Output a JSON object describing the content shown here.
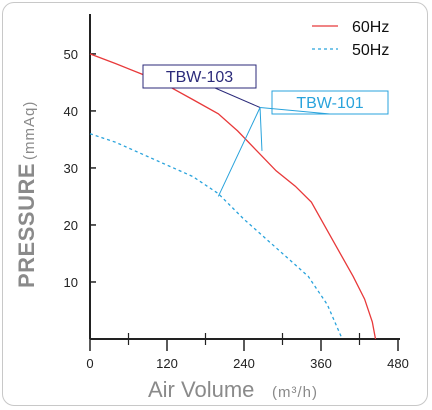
{
  "chart_data": {
    "type": "line",
    "xlabel": "Air Volume",
    "xunit": "(m³/h)",
    "ylabel": "PRESSURE",
    "yunit": "(mmAq)",
    "xlim": [
      0,
      480
    ],
    "ylim": [
      0,
      57
    ],
    "x_ticks": [
      0,
      120,
      240,
      360,
      480
    ],
    "x_minor_ticks": [
      60,
      180,
      300,
      420
    ],
    "y_ticks": [
      10,
      20,
      30,
      40,
      50
    ],
    "grid": false,
    "legend_position": "top-right",
    "series": [
      {
        "name": "60Hz",
        "color": "#e8393a",
        "style": "solid",
        "points": [
          [
            0,
            50
          ],
          [
            40,
            48.3
          ],
          [
            80,
            46.5
          ],
          [
            120,
            44.5
          ],
          [
            160,
            42
          ],
          [
            200,
            39.5
          ],
          [
            230,
            36.5
          ],
          [
            260,
            33
          ],
          [
            290,
            29.5
          ],
          [
            320,
            26.8
          ],
          [
            345,
            24
          ],
          [
            380,
            17
          ],
          [
            410,
            11
          ],
          [
            428,
            7
          ],
          [
            440,
            3
          ],
          [
            445,
            0
          ]
        ]
      },
      {
        "name": "50Hz",
        "color": "#29a3dc",
        "style": "dashed",
        "points": [
          [
            0,
            36
          ],
          [
            40,
            34.5
          ],
          [
            80,
            32.5
          ],
          [
            120,
            30.5
          ],
          [
            160,
            28.5
          ],
          [
            200,
            25.5
          ],
          [
            240,
            21
          ],
          [
            270,
            18
          ],
          [
            300,
            15
          ],
          [
            340,
            11
          ],
          [
            370,
            6
          ],
          [
            393,
            0
          ]
        ]
      }
    ],
    "annotations": [
      {
        "label": "TBW-103",
        "color": "#2b2a7a",
        "points": [
          [
            190,
            40
          ],
          [
            265,
            40.6
          ]
        ]
      },
      {
        "label": "TBW-101",
        "color": "#29a3dc",
        "points": [
          [
            200,
            25
          ],
          [
            268,
            33
          ],
          [
            265,
            40.6
          ]
        ]
      }
    ]
  }
}
